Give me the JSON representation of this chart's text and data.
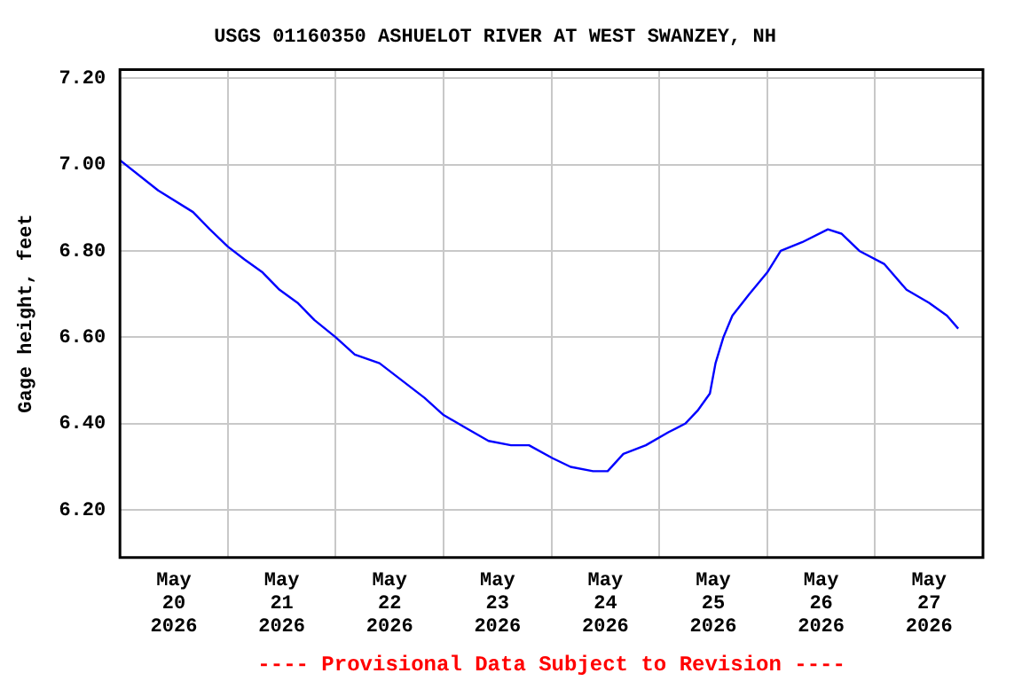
{
  "chart_data": {
    "type": "line",
    "title": "USGS 01160350 ASHUELOT RIVER AT WEST SWANZEY, NH",
    "ylabel": "Gage height, feet",
    "annotations": [
      "---- Provisional Data Subject to Revision ----"
    ],
    "x": [
      "2026-05-20T00:00",
      "2026-05-20T08:30",
      "2026-05-20T16:15",
      "2026-05-20T20:00",
      "2026-05-21T00:00",
      "2026-05-21T03:45",
      "2026-05-21T07:45",
      "2026-05-21T11:30",
      "2026-05-21T15:30",
      "2026-05-21T19:15",
      "2026-05-22T00:00",
      "2026-05-22T04:15",
      "2026-05-22T09:45",
      "2026-05-22T14:45",
      "2026-05-22T19:45",
      "2026-05-23T00:00",
      "2026-05-23T05:00",
      "2026-05-23T10:00",
      "2026-05-23T15:00",
      "2026-05-23T19:00",
      "2026-05-24T00:15",
      "2026-05-24T04:15",
      "2026-05-24T09:15",
      "2026-05-24T12:30",
      "2026-05-24T16:00",
      "2026-05-24T21:00",
      "2026-05-25T02:00",
      "2026-05-25T05:45",
      "2026-05-25T08:30",
      "2026-05-25T11:15",
      "2026-05-25T12:30",
      "2026-05-25T14:15",
      "2026-05-25T16:15",
      "2026-05-25T20:00",
      "2026-05-26T00:00",
      "2026-05-26T03:00",
      "2026-05-26T07:45",
      "2026-05-26T13:30",
      "2026-05-26T16:30",
      "2026-05-26T20:30",
      "2026-05-27T02:00",
      "2026-05-27T07:00",
      "2026-05-27T12:00",
      "2026-05-27T16:00",
      "2026-05-27T18:30"
    ],
    "series": [
      {
        "color": "#0000ff",
        "values": [
          7.01,
          6.94,
          6.89,
          6.85,
          6.81,
          6.78,
          6.75,
          6.71,
          6.68,
          6.64,
          6.6,
          6.56,
          6.54,
          6.5,
          6.46,
          6.42,
          6.39,
          6.36,
          6.35,
          6.35,
          6.32,
          6.3,
          6.29,
          6.29,
          6.33,
          6.35,
          6.38,
          6.4,
          6.43,
          6.47,
          6.54,
          6.6,
          6.65,
          6.7,
          6.75,
          6.8,
          6.82,
          6.85,
          6.84,
          6.8,
          6.77,
          6.71,
          6.68,
          6.65,
          6.62
        ]
      }
    ],
    "xlim": [
      "2026-05-20T00:00",
      "2026-05-28T00:00"
    ],
    "xticks": [
      {
        "value": "2026-05-20T00:00",
        "label": null
      },
      {
        "value": "2026-05-20T12:00",
        "label": "May\n20\n2026"
      },
      {
        "value": "2026-05-21T00:00",
        "label": null
      },
      {
        "value": "2026-05-21T12:00",
        "label": "May\n21\n2026"
      },
      {
        "value": "2026-05-22T00:00",
        "label": null
      },
      {
        "value": "2026-05-22T12:00",
        "label": "May\n22\n2026"
      },
      {
        "value": "2026-05-23T00:00",
        "label": null
      },
      {
        "value": "2026-05-23T12:00",
        "label": "May\n23\n2026"
      },
      {
        "value": "2026-05-24T00:00",
        "label": null
      },
      {
        "value": "2026-05-24T12:00",
        "label": "May\n24\n2026"
      },
      {
        "value": "2026-05-25T00:00",
        "label": null
      },
      {
        "value": "2026-05-25T12:00",
        "label": "May\n25\n2026"
      },
      {
        "value": "2026-05-26T00:00",
        "label": null
      },
      {
        "value": "2026-05-26T12:00",
        "label": "May\n26\n2026"
      },
      {
        "value": "2026-05-27T00:00",
        "label": null
      },
      {
        "value": "2026-05-27T12:00",
        "label": "May\n27\n2026"
      },
      {
        "value": "2026-05-28T00:00",
        "label": null
      }
    ],
    "ylim": [
      6.09,
      7.22
    ],
    "yticks": [
      {
        "value": 6.2,
        "label": "6.20"
      },
      {
        "value": 6.4,
        "label": "6.40"
      },
      {
        "value": 6.6,
        "label": "6.60"
      },
      {
        "value": 6.8,
        "label": "6.80"
      },
      {
        "value": 7.0,
        "label": "7.00"
      },
      {
        "value": 7.2,
        "label": "7.20"
      }
    ],
    "grid": true,
    "legend": false,
    "marker": "none",
    "line_style": "solid"
  }
}
